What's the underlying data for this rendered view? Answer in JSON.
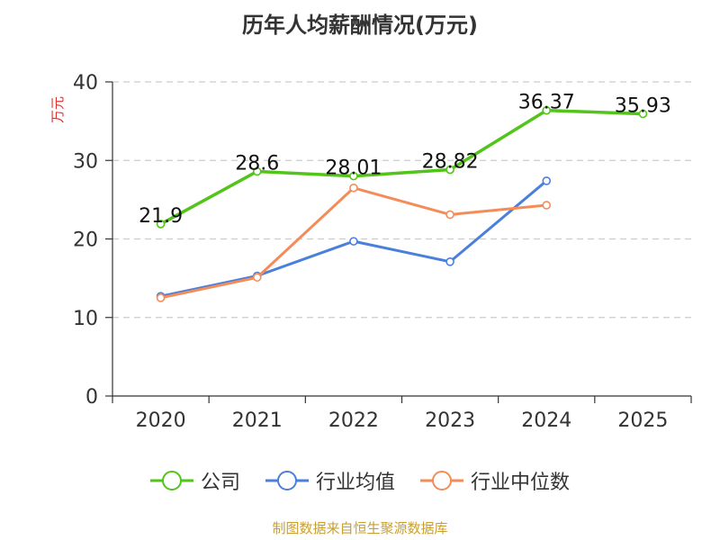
{
  "chart_data": {
    "type": "line",
    "title": "历年人均薪酬情况(万元)",
    "ylabel": "万元",
    "xlabel": "",
    "ylim": [
      0,
      40
    ],
    "yticks": [
      0,
      10,
      20,
      30,
      40
    ],
    "grid": true,
    "legend_position": "bottom",
    "categories": [
      "2020",
      "2021",
      "2022",
      "2023",
      "2024",
      "2025"
    ],
    "series": [
      {
        "name": "公司",
        "color": "#52c41a",
        "values": [
          21.9,
          28.6,
          28.01,
          28.82,
          36.37,
          35.93
        ],
        "labels": [
          "21.9",
          "28.6",
          "28.01",
          "28.82",
          "36.37",
          "35.93"
        ]
      },
      {
        "name": "行业均值",
        "color": "#4a7fdc",
        "values": [
          12.7,
          15.3,
          19.7,
          17.1,
          27.4,
          null
        ]
      },
      {
        "name": "行业中位数",
        "color": "#f48c5a",
        "values": [
          12.5,
          15.1,
          26.5,
          23.1,
          24.3,
          null
        ]
      }
    ]
  },
  "footer": {
    "source": "制图数据来自恒生聚源数据库",
    "source_color": "#c8a032"
  },
  "style": {
    "ylabel_color": "#e03030",
    "axis_color": "#333333",
    "grid_color": "#cccccc"
  }
}
